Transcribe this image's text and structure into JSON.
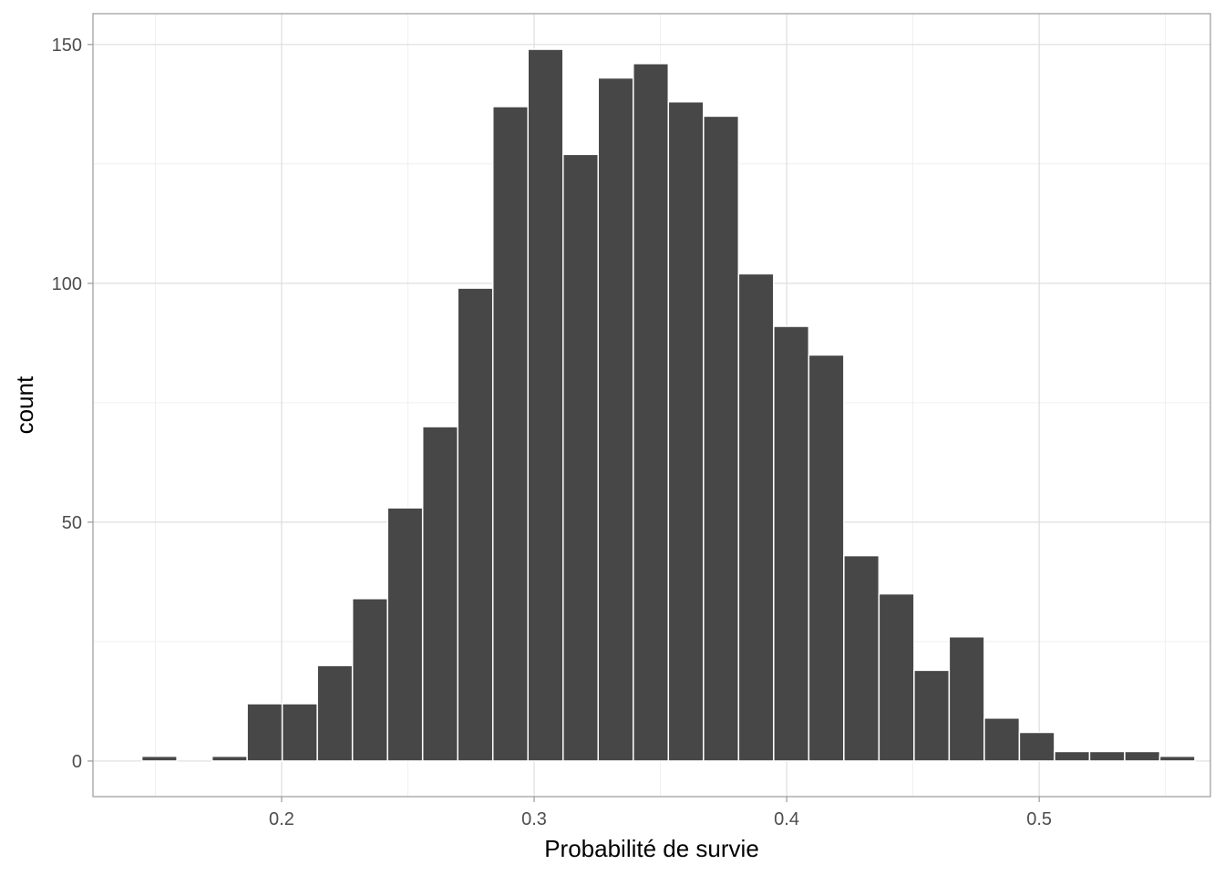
{
  "chart_data": {
    "type": "bar",
    "title": "",
    "xlabel": "Probabilité de survie",
    "ylabel": "count",
    "xlim": [
      0.1253,
      0.5678
    ],
    "ylim": [
      -7.45,
      156.45
    ],
    "x_ticks": [
      0.2,
      0.3,
      0.4,
      0.5
    ],
    "x_tick_labels": [
      "0.2",
      "0.3",
      "0.4",
      "0.5"
    ],
    "y_ticks": [
      0,
      50,
      100,
      150
    ],
    "y_tick_labels": [
      "0",
      "50",
      "100",
      "150"
    ],
    "grid": true,
    "bin_width": 0.0139,
    "bin_centers": [
      0.1516,
      0.1655,
      0.1794,
      0.1933,
      0.2072,
      0.2211,
      0.235,
      0.2489,
      0.2628,
      0.2767,
      0.2906,
      0.3045,
      0.3184,
      0.3323,
      0.3462,
      0.3601,
      0.374,
      0.3879,
      0.4018,
      0.4157,
      0.4296,
      0.4435,
      0.4574,
      0.4713,
      0.4852,
      0.4991,
      0.513,
      0.5269,
      0.5408,
      0.5547
    ],
    "values": [
      1,
      0,
      1,
      12,
      12,
      20,
      34,
      53,
      70,
      99,
      137,
      149,
      127,
      143,
      146,
      138,
      135,
      102,
      91,
      85,
      43,
      35,
      19,
      26,
      9,
      6,
      2,
      2,
      2,
      1
    ],
    "colors": {
      "bar_fill": "#474747",
      "bar_outline": "#ffffff",
      "grid": "#dedede",
      "panel_border": "#9a9a9a"
    }
  }
}
